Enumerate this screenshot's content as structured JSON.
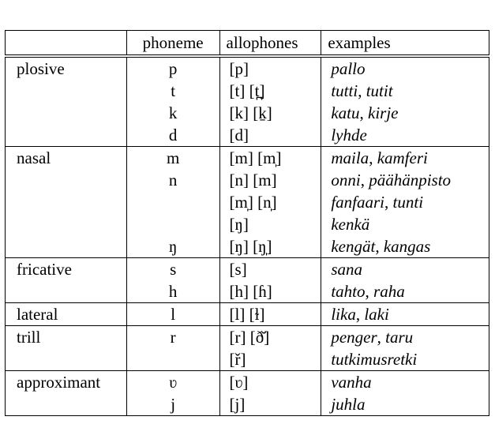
{
  "table": {
    "headers": [
      "",
      "phoneme",
      "allophones",
      "examples"
    ],
    "groups": [
      {
        "class": "plosive",
        "rows": [
          {
            "phoneme": "p",
            "allophones": "[p]",
            "examples": [
              "pallo"
            ]
          },
          {
            "phoneme": "t",
            "allophones": "[t] [t̪]",
            "examples": [
              "tutti",
              "tutit"
            ]
          },
          {
            "phoneme": "k",
            "allophones": "[k] [k̠]",
            "examples": [
              "katu",
              "kirje"
            ]
          },
          {
            "phoneme": "d",
            "allophones": "[d]",
            "examples": [
              "lyhde"
            ]
          }
        ]
      },
      {
        "class": "nasal",
        "rows": [
          {
            "phoneme": "m",
            "allophones": "[m] [m̩]",
            "examples": [
              "maila",
              "kamferi"
            ]
          },
          {
            "phoneme": "n",
            "allophones": "[n] [m]",
            "examples": [
              "onni",
              "päähänpisto"
            ]
          },
          {
            "phoneme": "",
            "allophones": "[m̩] [n̩]",
            "examples": [
              "fanfaari",
              "tunti"
            ]
          },
          {
            "phoneme": "",
            "allophones": "[ŋ]",
            "examples": [
              "kenkä"
            ]
          },
          {
            "phoneme": "ŋ",
            "allophones": "[ŋ] [ŋ̩]",
            "examples": [
              "kengät",
              "kangas"
            ]
          }
        ]
      },
      {
        "class": "fricative",
        "rows": [
          {
            "phoneme": "s",
            "allophones": "[s]",
            "examples": [
              "sana"
            ]
          },
          {
            "phoneme": "h",
            "allophones": "[h] [ɦ]",
            "examples": [
              "tahto",
              "raha"
            ]
          }
        ]
      },
      {
        "class": "lateral",
        "rows": [
          {
            "phoneme": "l",
            "allophones": "[l] [ɫ]",
            "examples": [
              "lika",
              "laki"
            ]
          }
        ]
      },
      {
        "class": "trill",
        "rows": [
          {
            "phoneme": "r",
            "allophones": "[r] [ð̆]",
            "examples": [
              "penger",
              "taru"
            ]
          },
          {
            "phoneme": "",
            "allophones": "[ř]",
            "examples": [
              "tutkimusretki"
            ]
          }
        ]
      },
      {
        "class": "approximant",
        "rows": [
          {
            "phoneme": "ʋ",
            "allophones": "[ʋ]",
            "examples": [
              "vanha"
            ]
          },
          {
            "phoneme": "j",
            "allophones": "[j]",
            "examples": [
              "juhla"
            ]
          }
        ]
      }
    ]
  }
}
